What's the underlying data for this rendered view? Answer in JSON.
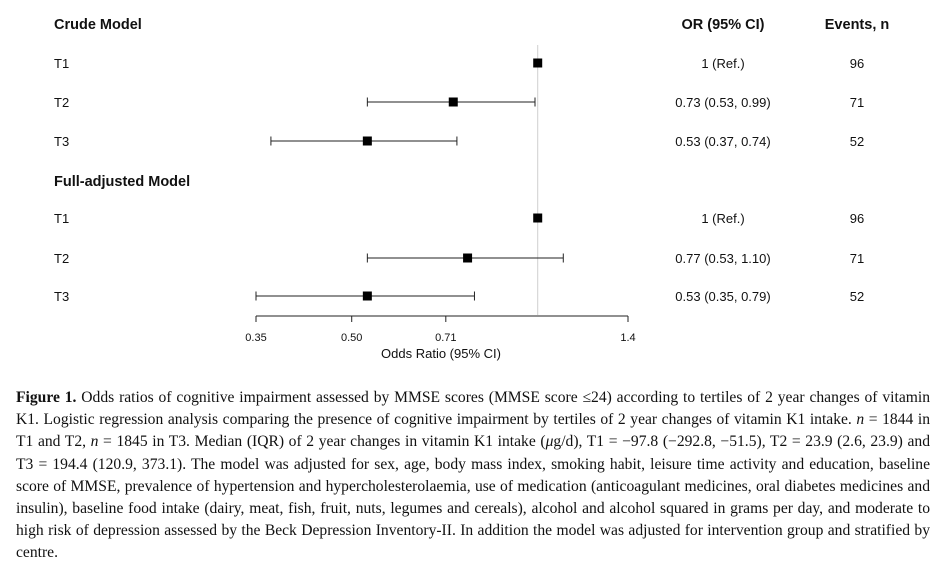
{
  "chart_data": {
    "type": "forest",
    "scale": "log",
    "reference_line": 1,
    "xlabel": "Odds Ratio (95% CI)",
    "xticks": [
      0.35,
      0.5,
      0.71,
      1.4
    ],
    "xtick_labels": [
      "0.35",
      "0.50",
      "0.71",
      "1.4"
    ],
    "xlim": [
      0.35,
      1.4
    ],
    "columns": {
      "or": "OR (95% CI)",
      "events": "Events, n"
    },
    "groups": [
      {
        "title": "Crude Model",
        "rows": [
          {
            "label": "T1",
            "or": 1.0,
            "lo": null,
            "hi": null,
            "or_text": "1 (Ref.)",
            "events": "96"
          },
          {
            "label": "T2",
            "or": 0.73,
            "lo": 0.53,
            "hi": 0.99,
            "or_text": "0.73 (0.53, 0.99)",
            "events": "71"
          },
          {
            "label": "T3",
            "or": 0.53,
            "lo": 0.37,
            "hi": 0.74,
            "or_text": "0.53 (0.37, 0.74)",
            "events": "52"
          }
        ]
      },
      {
        "title": "Full-adjusted Model",
        "rows": [
          {
            "label": "T1",
            "or": 1.0,
            "lo": null,
            "hi": null,
            "or_text": "1 (Ref.)",
            "events": "96"
          },
          {
            "label": "T2",
            "or": 0.77,
            "lo": 0.53,
            "hi": 1.1,
            "or_text": "0.77 (0.53, 1.10)",
            "events": "71"
          },
          {
            "label": "T3",
            "or": 0.53,
            "lo": 0.35,
            "hi": 0.79,
            "or_text": "0.53 (0.35, 0.79)",
            "events": "52"
          }
        ]
      }
    ]
  },
  "caption": {
    "label": "Figure 1.",
    "part1": " Odds ratios of cognitive impairment assessed by MMSE scores (MMSE score ≤24) according to tertiles of 2 year changes of vitamin K1. Logistic regression analysis comparing the presence of cognitive impairment by tertiles of 2 year changes of vitamin K1 intake. ",
    "n1": "n",
    "part2": " = 1844 in T1 and T2, ",
    "n2": "n",
    "part3": " = 1845 in T3. Median (IQR) of 2 year changes in vitamin K1 intake (",
    "unit_mu": "μ",
    "part4": "g/d), T1 = −97.8 (−292.8, −51.5), T2 = 23.9 (2.6, 23.9) and T3 = 194.4 (120.9, 373.1). The model was adjusted for sex, age, body mass index, smoking habit, leisure time activity and education, baseline score of MMSE, prevalence of hypertension and hypercholesterolaemia, use of medication (anticoagulant medicines, oral diabetes medicines and insulin), baseline food intake (dairy, meat, fish, fruit, nuts, legumes and cereals), alcohol and alcohol squared in grams per day, and moderate to high risk of depression assessed by the Beck Depression Inventory-II. In addition the model was adjusted for intervention group and stratified by centre."
  }
}
